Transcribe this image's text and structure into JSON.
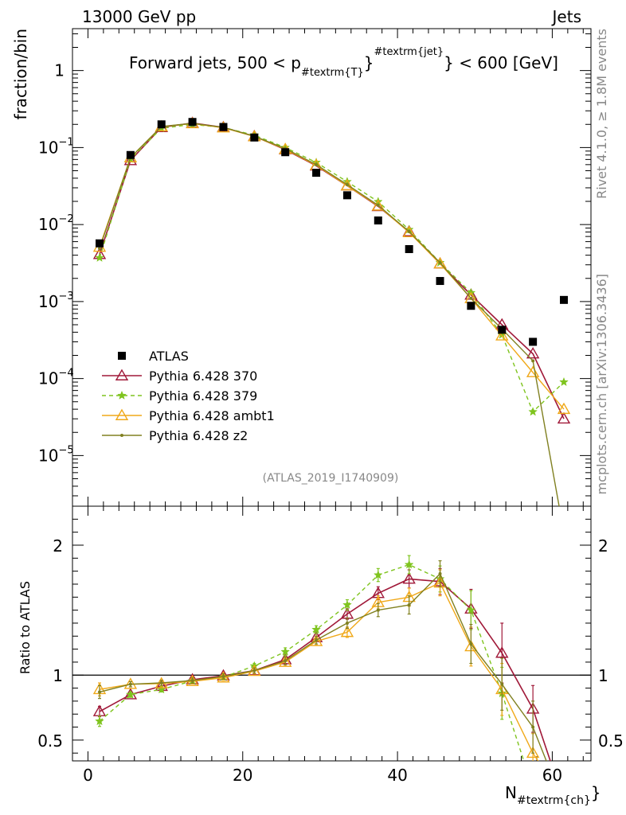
{
  "chart_data": {
    "type": "line",
    "header_left": "13000 GeV pp",
    "header_right": "Jets",
    "title": "Forward jets, 500 < p",
    "title_sub": "#textrm{T}",
    "title_sup": "#textrm{jet}",
    "title_end": "} < 600 [GeV]",
    "ylabel": "fraction/bin",
    "ratio_ylabel": "Ratio to ATLAS",
    "xlabel": "N",
    "xlabel_sub": "#textrm{ch}",
    "xlabel_end": "}",
    "watermark": "(ATLAS_2019_I1740909)",
    "side_rivet": "Rivet 4.1.0, ≥ 1.8M events",
    "side_mcplots": "mcplots.cern.ch [arXiv:1306.3436]",
    "xlim": [
      -2,
      65
    ],
    "ylim_log": [
      2.2e-06,
      3.5
    ],
    "ratio_ylim": [
      0.34,
      2.3
    ],
    "x_ticks": [
      0,
      20,
      40,
      60
    ],
    "x_tick_labels": [
      "0",
      "20",
      "40",
      "60"
    ],
    "y_ticks": [
      {
        "value": 1e-05,
        "base": "10",
        "exp": "−5"
      },
      {
        "value": 0.0001,
        "base": "10",
        "exp": "−4"
      },
      {
        "value": 0.001,
        "base": "10",
        "exp": "−3"
      },
      {
        "value": 0.01,
        "base": "10",
        "exp": "−2"
      },
      {
        "value": 0.1,
        "base": "10",
        "exp": "−1"
      },
      {
        "value": 1,
        "base": "1",
        "exp": ""
      }
    ],
    "ratio_ticks": [
      0.5,
      1,
      2
    ],
    "ratio_tick_labels": [
      "0.5",
      "1",
      "2"
    ],
    "x": [
      1.5,
      5.5,
      9.5,
      13.5,
      17.5,
      21.5,
      25.5,
      29.5,
      33.5,
      37.5,
      41.5,
      45.5,
      49.5,
      53.5,
      57.5,
      61.5
    ],
    "reference": {
      "name": "ATLAS",
      "color": "#000000",
      "values": [
        0.0057,
        0.08,
        0.2,
        0.215,
        0.185,
        0.135,
        0.087,
        0.047,
        0.024,
        0.0113,
        0.0048,
        0.00185,
        0.00088,
        0.00043,
        0.0003,
        0.00105
      ]
    },
    "series": [
      {
        "name": "Pythia 6.428 370",
        "color": "#a01838",
        "style": "solid",
        "marker": "triangle-open",
        "values": [
          0.0041,
          0.068,
          0.183,
          0.208,
          0.183,
          0.14,
          0.094,
          0.058,
          0.032,
          0.0172,
          0.0081,
          0.0031,
          0.00122,
          0.0005,
          0.00021,
          3e-05
        ],
        "ratio": [
          0.72,
          0.85,
          0.915,
          0.965,
          0.995,
          1.035,
          1.12,
          1.29,
          1.47,
          1.63,
          1.74,
          1.72,
          1.51,
          1.17,
          0.74,
          0.028
        ],
        "ratio_err": [
          0.04,
          0.02,
          0.02,
          0.02,
          0.02,
          0.02,
          0.03,
          0.03,
          0.04,
          0.05,
          0.07,
          0.1,
          0.15,
          0.23,
          0.18,
          0.02
        ]
      },
      {
        "name": "Pythia 6.428 379",
        "color": "#7fc41e",
        "style": "dashed",
        "marker": "star",
        "values": [
          0.0037,
          0.071,
          0.178,
          0.2,
          0.182,
          0.145,
          0.1,
          0.064,
          0.036,
          0.0198,
          0.0086,
          0.0032,
          0.0013,
          0.00037,
          3.7e-05,
          9e-05
        ],
        "ratio": [
          0.645,
          0.85,
          0.89,
          0.955,
          0.985,
          1.07,
          1.18,
          1.35,
          1.54,
          1.77,
          1.85,
          1.74,
          1.5,
          0.86,
          0.123,
          0.086
        ],
        "ratio_err": [
          0.04,
          0.02,
          0.02,
          0.02,
          0.02,
          0.02,
          0.03,
          0.03,
          0.04,
          0.05,
          0.07,
          0.1,
          0.15,
          0.2,
          0.1,
          0.04
        ]
      },
      {
        "name": "Pythia 6.428 ambt1",
        "color": "#f0a818",
        "style": "solid",
        "marker": "triangle-open",
        "values": [
          0.0051,
          0.074,
          0.187,
          0.205,
          0.181,
          0.139,
          0.095,
          0.059,
          0.032,
          0.0175,
          0.0079,
          0.0031,
          0.0011,
          0.00036,
          0.00012,
          4e-05
        ],
        "ratio": [
          0.89,
          0.93,
          0.935,
          0.952,
          0.98,
          1.03,
          1.1,
          1.26,
          1.33,
          1.56,
          1.6,
          1.71,
          1.22,
          0.89,
          0.4,
          0.038
        ],
        "ratio_err": [
          0.05,
          0.02,
          0.02,
          0.02,
          0.02,
          0.02,
          0.03,
          0.03,
          0.04,
          0.05,
          0.07,
          0.1,
          0.15,
          0.2,
          0.15,
          0.03
        ]
      },
      {
        "name": "Pythia 6.428 z2",
        "color": "#808020",
        "style": "solid",
        "marker": "dot",
        "values": [
          0.0049,
          0.074,
          0.188,
          0.206,
          0.183,
          0.14,
          0.097,
          0.06,
          0.033,
          0.0178,
          0.0081,
          0.0032,
          0.0011,
          0.00044,
          0.00017,
          1e-06
        ],
        "ratio": [
          0.87,
          0.93,
          0.94,
          0.958,
          0.99,
          1.035,
          1.11,
          1.27,
          1.4,
          1.5,
          1.54,
          1.78,
          1.24,
          0.93,
          0.6,
          0.001
        ],
        "ratio_err": [
          0.05,
          0.02,
          0.02,
          0.02,
          0.02,
          0.02,
          0.03,
          0.03,
          0.04,
          0.05,
          0.07,
          0.1,
          0.15,
          0.2,
          0.2,
          0.02
        ]
      }
    ]
  }
}
